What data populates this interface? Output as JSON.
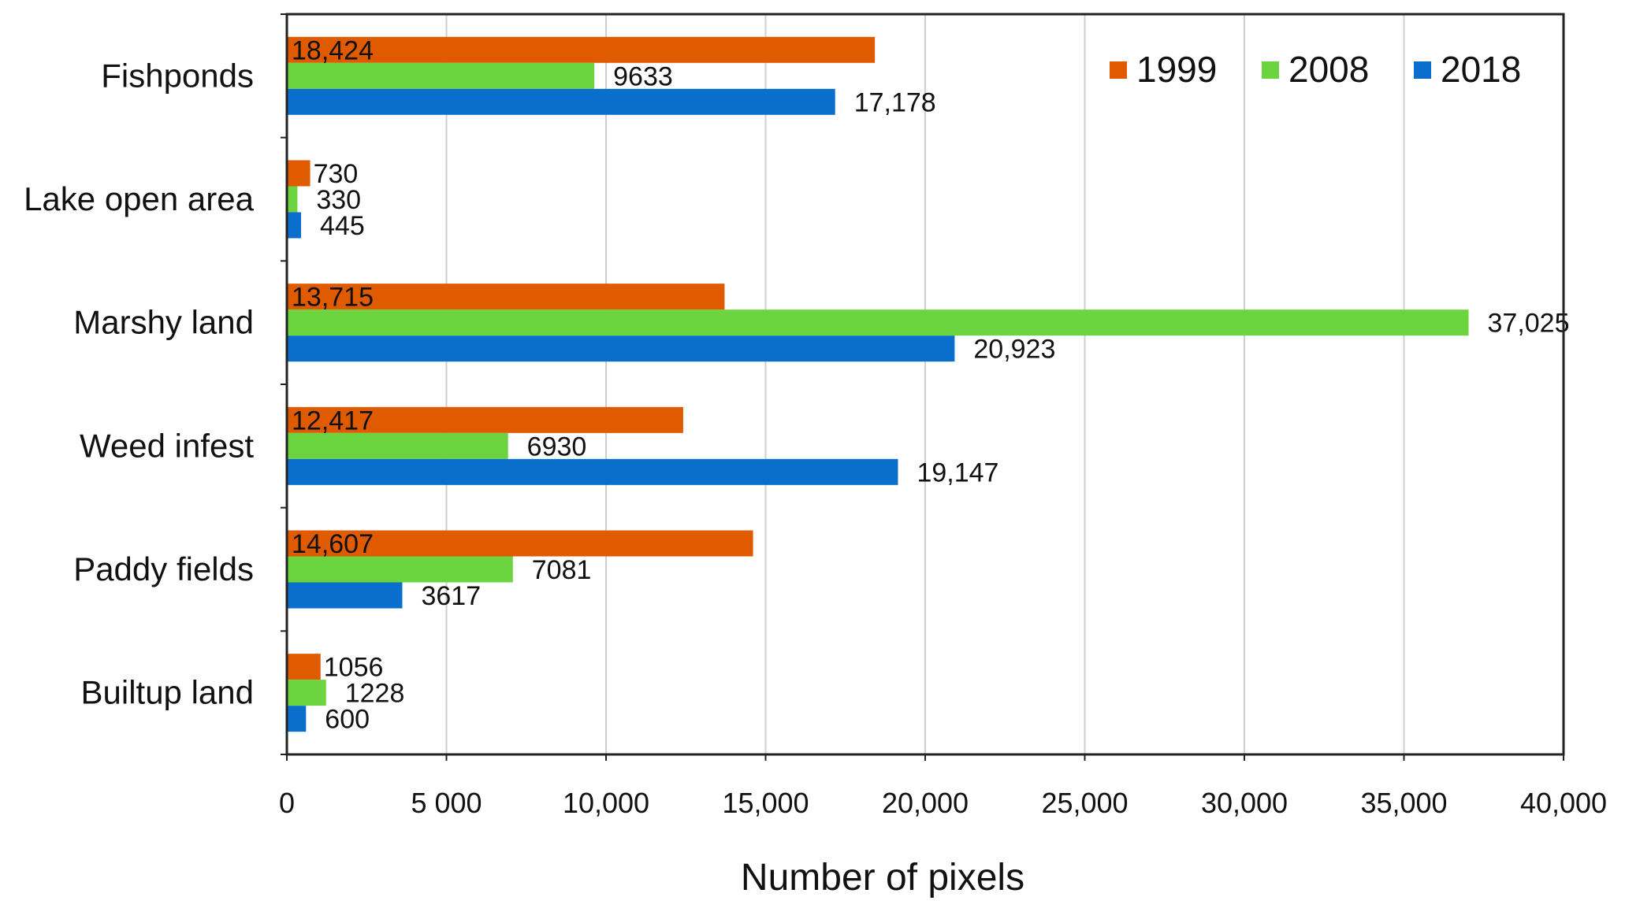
{
  "chart_data": {
    "type": "bar",
    "orientation": "horizontal",
    "categories": [
      "Fishponds",
      "Lake open area",
      "Marshy land",
      "Weed infest",
      "Paddy fields",
      "Builtup land"
    ],
    "series": [
      {
        "name": "1999",
        "color": "#E05A00",
        "values": [
          18424,
          730,
          13715,
          12417,
          14607,
          1056
        ],
        "labels": [
          "18,424",
          "730",
          "13,715",
          "12,417",
          "14,607",
          "1056"
        ]
      },
      {
        "name": "2008",
        "color": "#6BD43F",
        "values": [
          9633,
          330,
          37025,
          6930,
          7081,
          1228
        ],
        "labels": [
          "9633",
          "330",
          "37,025",
          "6930",
          "7081",
          "1228"
        ]
      },
      {
        "name": "2018",
        "color": "#0A6FCC",
        "values": [
          17178,
          445,
          20923,
          19147,
          3617,
          600
        ],
        "labels": [
          "17,178",
          "445",
          "20,923",
          "19,147",
          "3617",
          "600"
        ]
      }
    ],
    "xlim": [
      0,
      40000
    ],
    "xticks": [
      0,
      5000,
      10000,
      15000,
      20000,
      25000,
      30000,
      35000,
      40000
    ],
    "xtick_labels": [
      "0",
      "5 000",
      "10,000",
      "15,000",
      "20,000",
      "25,000",
      "30,000",
      "35,000",
      "40,000"
    ],
    "xlabel": "Number of pixels",
    "ylabel": "",
    "title": "",
    "grid": "vertical",
    "legend_position": "top-right"
  }
}
